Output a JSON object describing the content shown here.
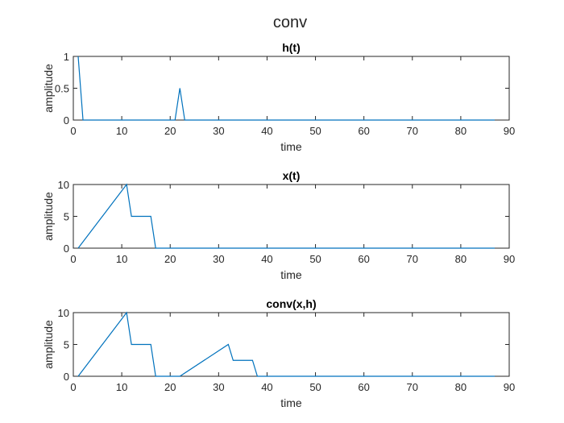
{
  "figure": {
    "suptitle": "conv"
  },
  "colors": {
    "line": "#0072BD",
    "axes": "#262626",
    "background": "#ffffff"
  },
  "chart_data": [
    {
      "type": "line",
      "title": "h(t)",
      "xlabel": "time",
      "ylabel": "amplitude",
      "xlim": [
        0,
        90
      ],
      "ylim": [
        0,
        1
      ],
      "xticks": [
        0,
        10,
        20,
        30,
        40,
        50,
        60,
        70,
        80,
        90
      ],
      "yticks": [
        0,
        0.5,
        1
      ],
      "ytick_labels": [
        "0",
        "0.5",
        "1"
      ],
      "grid": false,
      "series": [
        {
          "x": [
            1,
            2,
            21,
            22,
            23,
            87
          ],
          "y": [
            1,
            0,
            0,
            0.5,
            0,
            0
          ]
        }
      ]
    },
    {
      "type": "line",
      "title": "x(t)",
      "xlabel": "time",
      "ylabel": "amplitude",
      "xlim": [
        0,
        90
      ],
      "ylim": [
        0,
        10
      ],
      "xticks": [
        0,
        10,
        20,
        30,
        40,
        50,
        60,
        70,
        80,
        90
      ],
      "yticks": [
        0,
        5,
        10
      ],
      "ytick_labels": [
        "0",
        "5",
        "10"
      ],
      "grid": false,
      "series": [
        {
          "x": [
            1,
            11,
            12,
            16,
            17,
            87
          ],
          "y": [
            0,
            10,
            5,
            5,
            0,
            0
          ]
        }
      ]
    },
    {
      "type": "line",
      "title": "conv(x,h)",
      "xlabel": "time",
      "ylabel": "amplitude",
      "xlim": [
        0,
        90
      ],
      "ylim": [
        0,
        10
      ],
      "xticks": [
        0,
        10,
        20,
        30,
        40,
        50,
        60,
        70,
        80,
        90
      ],
      "yticks": [
        0,
        5,
        10
      ],
      "ytick_labels": [
        "0",
        "5",
        "10"
      ],
      "grid": false,
      "series": [
        {
          "x": [
            1,
            11,
            12,
            16,
            17,
            22,
            32,
            33,
            37,
            38,
            87
          ],
          "y": [
            0,
            10,
            5,
            5,
            0,
            0,
            5,
            2.5,
            2.5,
            0,
            0
          ]
        }
      ]
    }
  ]
}
